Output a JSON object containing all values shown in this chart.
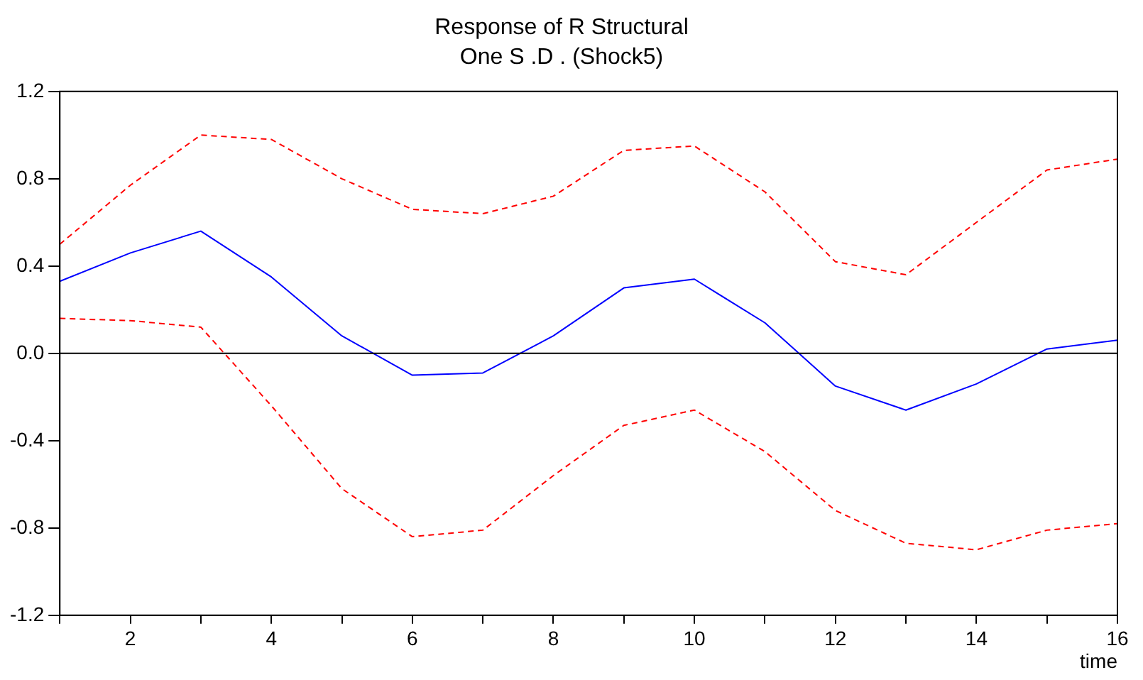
{
  "chart_data": {
    "type": "line",
    "title": "Response of R Structural",
    "subtitle": "One S .D . (Shock5)",
    "xlabel": "time",
    "x": [
      1,
      2,
      3,
      4,
      5,
      6,
      7,
      8,
      9,
      10,
      11,
      12,
      13,
      14,
      15,
      16
    ],
    "series": [
      {
        "color": "#0000ff",
        "line_style": "solid",
        "values": [
          0.33,
          0.46,
          0.56,
          0.35,
          0.08,
          -0.1,
          -0.09,
          0.08,
          0.3,
          0.34,
          0.14,
          -0.15,
          -0.26,
          -0.14,
          0.02,
          0.06
        ]
      },
      {
        "color": "#ff0000",
        "line_style": "dashed",
        "values": [
          0.5,
          0.77,
          1.0,
          0.98,
          0.8,
          0.66,
          0.64,
          0.72,
          0.93,
          0.95,
          0.74,
          0.42,
          0.36,
          0.6,
          0.84,
          0.89
        ]
      },
      {
        "color": "#ff0000",
        "line_style": "dashed",
        "values": [
          0.16,
          0.15,
          0.12,
          -0.24,
          -0.62,
          -0.84,
          -0.81,
          -0.56,
          -0.33,
          -0.26,
          -0.45,
          -0.72,
          -0.87,
          -0.9,
          -0.81,
          -0.78
        ]
      }
    ],
    "xlim": [
      1,
      16
    ],
    "xticks": [
      {
        "value": 1,
        "label": null
      },
      2,
      {
        "value": 3,
        "label": null
      },
      4,
      {
        "value": 5,
        "label": null
      },
      6,
      {
        "value": 7,
        "label": null
      },
      8,
      {
        "value": 9,
        "label": null
      },
      10,
      {
        "value": 11,
        "label": null
      },
      12,
      {
        "value": 13,
        "label": null
      },
      14,
      {
        "value": 15,
        "label": null
      },
      16
    ],
    "ylim": [
      -1.2,
      1.2
    ],
    "yticks": [
      {
        "value": -1.2,
        "label": "-1.2"
      },
      {
        "value": -0.8,
        "label": "-0.8"
      },
      {
        "value": -0.4,
        "label": "-0.4"
      },
      {
        "value": 0,
        "label": "0.0"
      },
      {
        "value": 0.4,
        "label": "0.4"
      },
      {
        "value": 0.8,
        "label": "0.8"
      },
      {
        "value": 1.2,
        "label": "1.2"
      }
    ],
    "ref_lines": [
      {
        "axis": "y",
        "value": 0,
        "color": "#000000"
      }
    ],
    "grid": false,
    "legend": false,
    "marker": "none"
  }
}
